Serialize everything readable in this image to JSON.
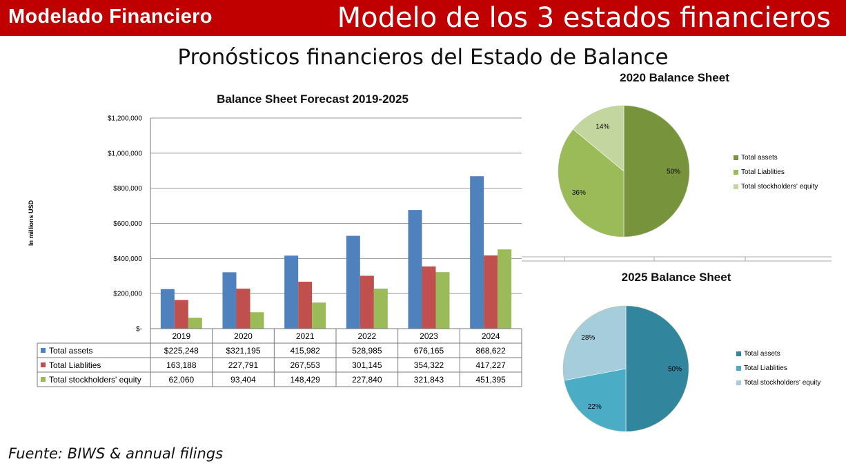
{
  "header": {
    "brand": "Modelado Financiero",
    "topic": "Modelo de los 3 estados financieros"
  },
  "slide_title": "Pronósticos financieros del Estado de Balance",
  "source": "Fuente: BIWS & annual filings",
  "colors": {
    "header_bg": "#c00000",
    "assets": "#4f81bd",
    "liabilities": "#c0504d",
    "equity": "#9bbb59",
    "pie2020": [
      "#77933c",
      "#9bbb59",
      "#c4d6a0"
    ],
    "pie2025": [
      "#31859c",
      "#4bacc6",
      "#a5cddb"
    ]
  },
  "chart_data": [
    {
      "type": "bar",
      "title": "Balance Sheet Forecast 2019-2025",
      "ylabel": "In millions USD",
      "xlabel": "",
      "ylim": [
        0,
        1200000
      ],
      "y_ticks": [
        "$-",
        "$200,000",
        "$400,000",
        "$600,000",
        "$800,000",
        "$1,000,000",
        "$1,200,000"
      ],
      "categories": [
        "2019",
        "2020",
        "2021",
        "2022",
        "2023",
        "2024"
      ],
      "series": [
        {
          "name": "Total assets",
          "values": [
            225248,
            321195,
            415982,
            528985,
            676165,
            868622
          ],
          "labels": [
            "$225,248",
            "$321,195",
            "415,982",
            "528,985",
            "676,165",
            "868,622"
          ]
        },
        {
          "name": "Total Liablities",
          "values": [
            163188,
            227791,
            267553,
            301145,
            354322,
            417227
          ],
          "labels": [
            "163,188",
            "227,791",
            "267,553",
            "301,145",
            "354,322",
            "417,227"
          ]
        },
        {
          "name": "Total stockholders' equity",
          "values": [
            62060,
            93404,
            148429,
            227840,
            321843,
            451395
          ],
          "labels": [
            "62,060",
            "93,404",
            "148,429",
            "227,840",
            "321,843",
            "451,395"
          ]
        }
      ],
      "grid": true,
      "legend": "data table"
    },
    {
      "type": "pie",
      "title": "2020 Balance Sheet",
      "labels": [
        "Total assets",
        "Total Liablities",
        "Total stockholders' equity"
      ],
      "values": [
        50,
        36,
        14
      ],
      "value_labels": [
        "50%",
        "36%",
        "14%"
      ],
      "legend": "right"
    },
    {
      "type": "pie",
      "title": "2025 Balance Sheet",
      "labels": [
        "Total assets",
        "Total Liablities",
        "Total stockholders' equity"
      ],
      "values": [
        50,
        22,
        28
      ],
      "value_labels": [
        "50%",
        "22%",
        "28%"
      ],
      "legend": "right"
    }
  ]
}
